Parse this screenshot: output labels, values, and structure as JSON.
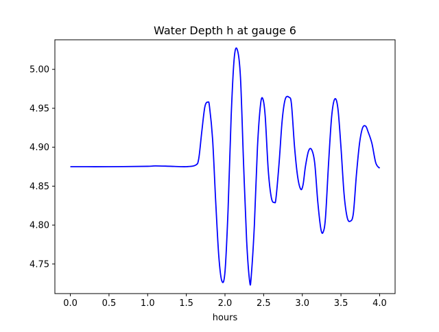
{
  "chart_data": {
    "type": "line",
    "title": "Water Depth h at gauge 6",
    "xlabel": "hours",
    "ylabel": "",
    "xlim": [
      -0.2,
      4.2
    ],
    "ylim": [
      4.712,
      5.038
    ],
    "xticks": [
      0.0,
      0.5,
      1.0,
      1.5,
      2.0,
      2.5,
      3.0,
      3.5,
      4.0
    ],
    "xtick_labels": [
      "0.0",
      "0.5",
      "1.0",
      "1.5",
      "2.0",
      "2.5",
      "3.0",
      "3.5",
      "4.0"
    ],
    "yticks": [
      4.75,
      4.8,
      4.85,
      4.9,
      4.95,
      5.0
    ],
    "ytick_labels": [
      "4.75",
      "4.80",
      "4.85",
      "4.90",
      "4.95",
      "5.00"
    ],
    "grid": false,
    "series": [
      {
        "color": "#0000ff",
        "x": [
          0.0,
          0.5,
          1.0,
          1.1,
          1.3,
          1.5,
          1.62,
          1.66,
          1.7,
          1.74,
          1.78,
          1.8,
          1.84,
          1.88,
          1.92,
          1.96,
          2.0,
          2.04,
          2.08,
          2.12,
          2.16,
          2.2,
          2.24,
          2.28,
          2.32,
          2.34,
          2.38,
          2.42,
          2.46,
          2.49,
          2.52,
          2.56,
          2.6,
          2.64,
          2.66,
          2.7,
          2.74,
          2.78,
          2.83,
          2.86,
          2.9,
          2.94,
          2.98,
          3.01,
          3.04,
          3.08,
          3.12,
          3.16,
          3.2,
          3.24,
          3.27,
          3.3,
          3.34,
          3.38,
          3.42,
          3.46,
          3.5,
          3.54,
          3.58,
          3.62,
          3.66,
          3.7,
          3.74,
          3.78,
          3.82,
          3.85,
          3.9,
          3.95,
          4.0
        ],
        "y": [
          4.875,
          4.875,
          4.8755,
          4.876,
          4.8755,
          4.875,
          4.877,
          4.885,
          4.92,
          4.952,
          4.958,
          4.952,
          4.91,
          4.83,
          4.76,
          4.728,
          4.74,
          4.82,
          4.94,
          5.015,
          5.025,
          4.99,
          4.88,
          4.78,
          4.727,
          4.735,
          4.8,
          4.9,
          4.955,
          4.962,
          4.94,
          4.87,
          4.835,
          4.829,
          4.835,
          4.88,
          4.935,
          4.962,
          4.964,
          4.955,
          4.9,
          4.862,
          4.846,
          4.852,
          4.875,
          4.895,
          4.897,
          4.88,
          4.83,
          4.795,
          4.791,
          4.81,
          4.88,
          4.94,
          4.962,
          4.95,
          4.9,
          4.84,
          4.81,
          4.805,
          4.815,
          4.865,
          4.905,
          4.925,
          4.927,
          4.92,
          4.905,
          4.88,
          4.873
        ]
      }
    ]
  }
}
